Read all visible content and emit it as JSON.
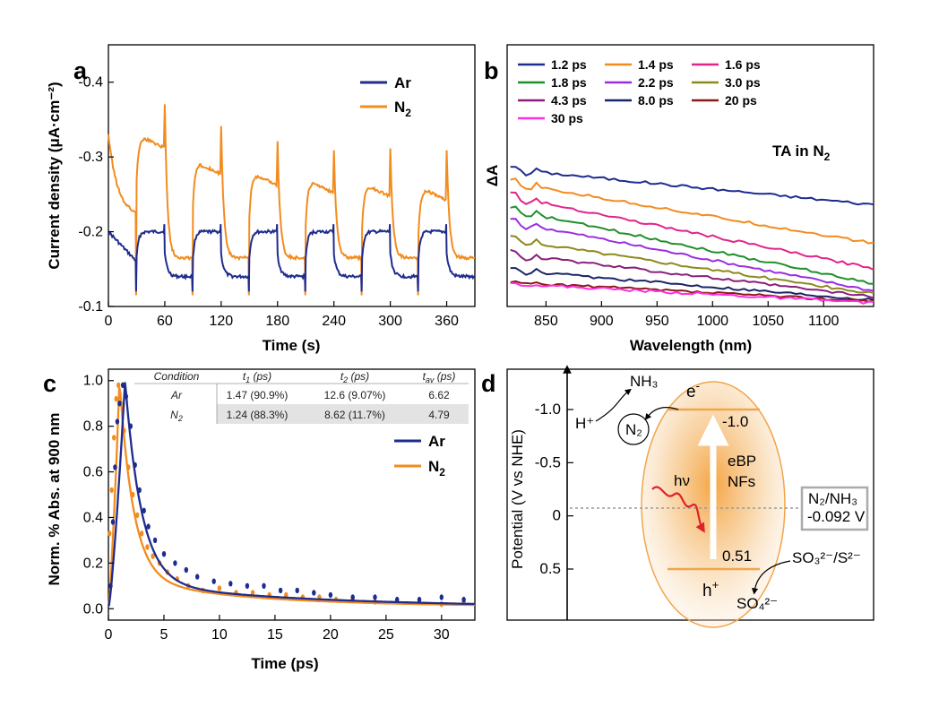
{
  "panels": {
    "a": "a",
    "b": "b",
    "c": "c",
    "d": "d"
  },
  "colors": {
    "ar": "#1f2c8f",
    "n2": "#f28c1e"
  },
  "chart_data": [
    {
      "panel": "a",
      "type": "line",
      "xlabel": "Time (s)",
      "ylabel": "Current density (μA·cm⁻²)",
      "xlim": [
        0,
        390
      ],
      "ylim": [
        -0.1,
        -0.45
      ],
      "xticks": [
        "0",
        "60",
        "120",
        "180",
        "240",
        "300",
        "360"
      ],
      "yticks": [
        "-0.1",
        "-0.2",
        "-0.3",
        "-0.4"
      ],
      "light_on": [
        30,
        90,
        150,
        210,
        270,
        330
      ],
      "light_off": [
        60,
        120,
        180,
        240,
        300,
        360
      ],
      "series": [
        {
          "name": "Ar",
          "color": "#1f2c8f",
          "dark": -0.14,
          "light": -0.2,
          "spike_on": -0.12,
          "spike_off": -0.21
        },
        {
          "name": "N2",
          "color": "#f28c1e",
          "dark": -0.165,
          "light_levels": [
            -0.33,
            -0.295,
            -0.28,
            -0.27,
            -0.265,
            -0.26
          ],
          "spike_on": -0.115,
          "spike_off_levels": [
            -0.37,
            -0.34,
            -0.32,
            -0.31,
            -0.31,
            -0.31
          ],
          "start": -0.33
        }
      ],
      "legend": [
        {
          "label": "Ar",
          "sub": ""
        },
        {
          "label": "N",
          "sub": "2"
        }
      ]
    },
    {
      "panel": "b",
      "type": "line",
      "xlabel": "Wavelength (nm)",
      "ylabel": "ΔA",
      "xlim": [
        815,
        1145
      ],
      "xticks": [
        "850",
        "900",
        "950",
        "1000",
        "1050",
        "1100"
      ],
      "annotation": {
        "text": "TA in N",
        "sub": "2"
      },
      "series": [
        {
          "name": "1.2 ps",
          "color": "#1f2c8f",
          "start": 0.9,
          "end": 0.66
        },
        {
          "name": "1.4 ps",
          "color": "#f28c1e",
          "start": 0.81,
          "end": 0.4
        },
        {
          "name": "1.6 ps",
          "color": "#e0268a",
          "start": 0.72,
          "end": 0.23
        },
        {
          "name": "1.8 ps",
          "color": "#1f8f2c",
          "start": 0.63,
          "end": 0.13
        },
        {
          "name": "2.2 ps",
          "color": "#9b2fe0",
          "start": 0.55,
          "end": 0.08
        },
        {
          "name": "3.0 ps",
          "color": "#8c8a1e",
          "start": 0.43,
          "end": 0.06
        },
        {
          "name": "4.3 ps",
          "color": "#8a1f7a",
          "start": 0.33,
          "end": 0.04
        },
        {
          "name": "8.0 ps",
          "color": "#1a2466",
          "start": 0.22,
          "end": 0.02
        },
        {
          "name": "20 ps",
          "color": "#8b1a1a",
          "start": 0.14,
          "end": 0.01
        },
        {
          "name": "30 ps",
          "color": "#ff2ee0",
          "start": 0.13,
          "end": 0.0
        }
      ]
    },
    {
      "panel": "c",
      "type": "scatter",
      "xlabel": "Time (ps)",
      "ylabel": "Norm. % Abs. at 900 nm",
      "xlim": [
        0,
        33
      ],
      "ylim": [
        -0.05,
        1.05
      ],
      "xticks": [
        "0",
        "5",
        "10",
        "15",
        "20",
        "25",
        "30"
      ],
      "yticks": [
        "0.0",
        "0.2",
        "0.4",
        "0.6",
        "0.8",
        "1.0"
      ],
      "series": [
        {
          "name": "Ar",
          "color": "#1f2c8f",
          "peak_x": 1.5,
          "A1": 0.909,
          "t1": 1.47,
          "t2": 12.6,
          "points": [
            [
              0.2,
              0.1
            ],
            [
              0.4,
              0.38
            ],
            [
              0.6,
              0.62
            ],
            [
              0.8,
              0.82
            ],
            [
              1.0,
              0.9
            ],
            [
              1.3,
              0.98
            ],
            [
              1.6,
              0.93
            ],
            [
              2.0,
              0.8
            ],
            [
              2.4,
              0.63
            ],
            [
              2.8,
              0.52
            ],
            [
              3.2,
              0.43
            ],
            [
              3.6,
              0.36
            ],
            [
              4.2,
              0.3
            ],
            [
              5.0,
              0.24
            ],
            [
              6.0,
              0.2
            ],
            [
              7.0,
              0.17
            ],
            [
              8.0,
              0.14
            ],
            [
              9.5,
              0.12
            ],
            [
              11,
              0.11
            ],
            [
              12.5,
              0.1
            ],
            [
              14,
              0.1
            ],
            [
              15.5,
              0.08
            ],
            [
              17,
              0.08
            ],
            [
              18.5,
              0.07
            ],
            [
              20,
              0.06
            ],
            [
              22,
              0.05
            ],
            [
              24,
              0.05
            ],
            [
              26,
              0.04
            ],
            [
              28,
              0.04
            ],
            [
              30,
              0.05
            ],
            [
              32,
              0.04
            ]
          ]
        },
        {
          "name": "N2",
          "color": "#f28c1e",
          "peak_x": 1.0,
          "A1": 0.883,
          "t1": 1.24,
          "t2": 8.62,
          "points": [
            [
              0.1,
              0.33
            ],
            [
              0.3,
              0.52
            ],
            [
              0.5,
              0.75
            ],
            [
              0.7,
              0.92
            ],
            [
              0.9,
              0.98
            ],
            [
              1.1,
              0.9
            ],
            [
              1.4,
              0.78
            ],
            [
              1.8,
              0.62
            ],
            [
              2.2,
              0.5
            ],
            [
              2.6,
              0.41
            ],
            [
              3.0,
              0.33
            ],
            [
              3.5,
              0.27
            ],
            [
              4.0,
              0.23
            ],
            [
              4.6,
              0.2
            ],
            [
              5.3,
              0.16
            ],
            [
              6.2,
              0.13
            ],
            [
              7.2,
              0.1
            ],
            [
              8.5,
              0.08
            ],
            [
              10,
              0.09
            ],
            [
              11.5,
              0.07
            ],
            [
              13,
              0.07
            ],
            [
              14.5,
              0.06
            ],
            [
              16,
              0.06
            ],
            [
              17.5,
              0.05
            ],
            [
              19,
              0.05
            ],
            [
              20.5,
              0.04
            ],
            [
              22,
              0.04
            ],
            [
              24,
              0.03
            ],
            [
              26,
              0.03
            ],
            [
              28,
              0.03
            ],
            [
              30,
              0.02
            ],
            [
              32,
              0.03
            ]
          ]
        }
      ],
      "legend": [
        {
          "label": "Ar",
          "sub": ""
        },
        {
          "label": "N",
          "sub": "2"
        }
      ],
      "table": {
        "headers": [
          {
            "t": "Condition",
            "sub": ""
          },
          {
            "t": "t",
            "sub": "1",
            "suffix": " (ps)"
          },
          {
            "t": "t",
            "sub": "2",
            "suffix": " (ps)"
          },
          {
            "t": "t",
            "sub": "av",
            "suffix": " (ps)"
          }
        ],
        "rows": [
          {
            "cond": "Ar",
            "cond_sub": "",
            "t1": "1.47 (90.9%)",
            "t2": "12.6 (9.07%)",
            "tav": "6.62"
          },
          {
            "cond": "N",
            "cond_sub": "2",
            "t1": "1.24 (88.3%)",
            "t2": "8.62 (11.7%)",
            "tav": "4.79"
          }
        ]
      }
    },
    {
      "panel": "d",
      "type": "diagram",
      "ylabel": "Potential (V vs NHE)",
      "yticks": [
        "-1.0",
        "-0.5",
        "0",
        "0.5"
      ],
      "tick_values": [
        -1.0,
        -0.5,
        0,
        0.5
      ],
      "cb_value": "-1.0",
      "vb_value": "0.51",
      "electron": "e",
      "hole": "h",
      "material_line1": "eBP",
      "material_line2": "NFs",
      "light": "hν",
      "redox_line1": "N₂/NH₃",
      "redox_line2": "-0.092 V",
      "redox_potential": -0.092,
      "nh3": "NH₃",
      "n2": "N₂",
      "hplus": "H⁺",
      "sacrificial": "SO₃²⁻/S²⁻",
      "product": "SO₄²⁻"
    }
  ]
}
